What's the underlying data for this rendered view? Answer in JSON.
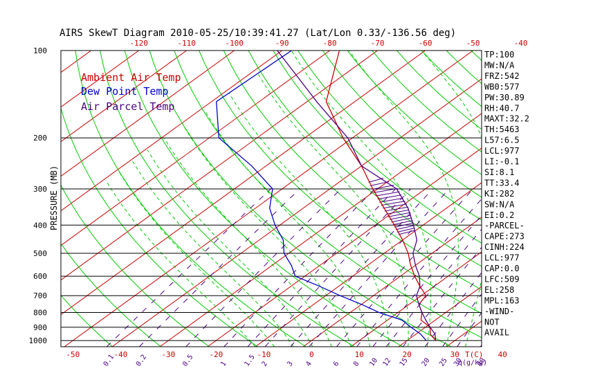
{
  "chart_data": {
    "type": "line",
    "title": "AIRS SkewT Diagram 2010-05-25/10:39:41.27 (Lat/Lon 0.33/-136.56 deg)",
    "ylabel": "PRESSURE (MB)",
    "xlabel_bottom_unit": "T(C)",
    "mixing_ratio_unit": "q(g/kg)",
    "y_axis_scale": "log",
    "pressure_ticks": [
      100,
      200,
      300,
      400,
      500,
      600,
      700,
      800,
      900,
      1000
    ],
    "bottom_temp_ticks": [
      -50,
      -40,
      -30,
      -20,
      -10,
      0,
      10,
      20,
      30,
      40
    ],
    "top_temp_ticks": [
      -120,
      -110,
      -100,
      -90,
      -80,
      -70,
      -60,
      -50,
      -40
    ],
    "mixing_ratio_labels": [
      "0.1",
      "0.2",
      "0.5",
      "1",
      "1.5",
      "2",
      "3",
      "4",
      "6",
      "8",
      "10",
      "12",
      "15",
      "20",
      "25",
      "30",
      "40"
    ],
    "mixing_ratio_values": [
      0.1,
      0.2,
      0.5,
      1,
      1.5,
      2,
      3,
      4,
      6,
      8,
      10,
      12,
      15,
      20,
      25,
      30,
      40
    ],
    "legend": [
      {
        "label": "Ambient Air Temp",
        "color": "#cc0000"
      },
      {
        "label": "Dew Point Temp",
        "color": "#0000cc"
      },
      {
        "label": "Air Parcel Temp",
        "color": "#4b0082"
      }
    ],
    "series": [
      {
        "name": "Ambient Air Temp",
        "color": "#cc0000",
        "pressure": [
          100,
          150,
          200,
          250,
          300,
          350,
          400,
          450,
          500,
          550,
          600,
          650,
          700,
          750,
          800,
          850,
          900,
          950,
          1000
        ],
        "temp": [
          -78,
          -66,
          -52,
          -40,
          -31,
          -23,
          -16,
          -10,
          -5,
          -1,
          3,
          7,
          11,
          12,
          15,
          17,
          21,
          23,
          26
        ]
      },
      {
        "name": "Dew Point Temp",
        "color": "#0000cc",
        "pressure": [
          100,
          150,
          200,
          250,
          300,
          350,
          400,
          450,
          500,
          550,
          600,
          650,
          700,
          750,
          800,
          850,
          900,
          950,
          1000
        ],
        "temp": [
          -88,
          -89,
          -78,
          -63,
          -52,
          -47,
          -41,
          -35,
          -31,
          -26,
          -22,
          -14,
          -7,
          0,
          6,
          13,
          17,
          21,
          24
        ]
      },
      {
        "name": "Air Parcel Temp",
        "color": "#4b0082",
        "pressure": [
          100,
          150,
          200,
          250,
          300,
          350,
          400,
          450,
          500,
          550,
          600,
          650,
          700,
          750,
          800,
          850,
          900,
          950,
          1000
        ],
        "temp": [
          -91,
          -68,
          -51,
          -40,
          -26,
          -18,
          -12,
          -7,
          -4,
          0,
          4,
          7,
          9,
          12,
          15,
          18,
          21,
          24,
          26
        ]
      }
    ],
    "cape_hatch_pressure": [
      280,
      430
    ]
  },
  "stats": [
    "TP:100",
    "MW:N/A",
    "FRZ:542",
    "WB0:577",
    "PW:30.89",
    "RH:40.7",
    "MAXT:32.2",
    "TH:5463",
    "L57:6.5",
    "LCL:977",
    "LI:-0.1",
    "SI:8.1",
    "TT:33.4",
    "KI:282",
    "SW:N/A",
    "EI:0.2",
    "-PARCEL-",
    "CAPE:273",
    "CINH:224",
    "LCL:977",
    "CAP:0.0",
    "LFC:509",
    "EL:258",
    "MPL:163",
    "-WIND-",
    "NOT",
    "AVAIL"
  ],
  "colors": {
    "isotherm": "#cc0000",
    "dry_adiabat": "#00cc00",
    "moist_adiabat": "#00cc00",
    "mixing_ratio": "#4b0082",
    "isobar": "#000000"
  }
}
